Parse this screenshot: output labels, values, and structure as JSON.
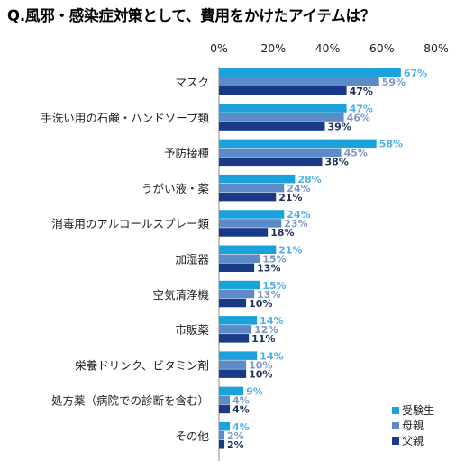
{
  "chart_data": {
    "type": "bar",
    "orientation": "horizontal",
    "title": "Q.風邪・感染症対策として、費用をかけたアイテムは？",
    "categories": [
      "マスク",
      "手洗い用の石鹸・ハンドソープ類",
      "予防接種",
      "うがい液・薬",
      "消毒用のアルコールスプレー類",
      "加湿器",
      "空気清浄機",
      "市販薬",
      "栄養ドリンク、ビタミン剤",
      "処方薬（病院での診断を含む）",
      "その他"
    ],
    "series": [
      {
        "name": "受験生",
        "color": "#1ba1dc",
        "label_color": "#4fb2e6",
        "values": [
          67,
          47,
          58,
          28,
          24,
          21,
          15,
          14,
          14,
          9,
          4
        ]
      },
      {
        "name": "母親",
        "color": "#5c8bc8",
        "label_color": "#7b98c9",
        "values": [
          59,
          46,
          45,
          24,
          23,
          15,
          13,
          12,
          10,
          4,
          2
        ]
      },
      {
        "name": "父親",
        "color": "#1a3a87",
        "label_color": "#1f2f5f",
        "values": [
          47,
          39,
          38,
          21,
          18,
          13,
          10,
          11,
          10,
          4,
          2
        ]
      }
    ],
    "x_ticks": [
      "0%",
      "20%",
      "40%",
      "60%",
      "80%"
    ],
    "xlim": [
      0,
      80
    ],
    "value_suffix": "%",
    "grid": false,
    "legend_position": "bottom-right"
  }
}
